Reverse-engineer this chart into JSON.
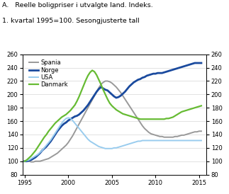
{
  "title_line1": "A.   Reelle boligpriser i utvalgte land. Indeks.",
  "title_line2": "1. kvartal 1995=100. Sesongjusterte tall",
  "ylim": [
    80,
    260
  ],
  "xlim": [
    1994.8,
    2015.8
  ],
  "yticks": [
    80,
    100,
    120,
    140,
    160,
    180,
    200,
    220,
    240,
    260
  ],
  "xticks": [
    1995,
    2000,
    2005,
    2010,
    2015
  ],
  "legend": [
    "Spania",
    "Norge",
    "USA",
    "Danmark"
  ],
  "colors": {
    "Spania": "#999999",
    "Norge": "#1a4a9e",
    "USA": "#99ccee",
    "Danmark": "#66bb33"
  },
  "linewidths": {
    "Spania": 1.4,
    "Norge": 2.0,
    "USA": 1.4,
    "Danmark": 1.6
  },
  "spania": [
    100,
    100,
    100,
    99,
    99,
    100,
    100,
    100,
    101,
    102,
    103,
    104,
    106,
    108,
    110,
    112,
    115,
    118,
    121,
    124,
    128,
    133,
    138,
    144,
    150,
    156,
    162,
    168,
    174,
    180,
    186,
    192,
    198,
    204,
    210,
    215,
    218,
    220,
    220,
    219,
    217,
    214,
    211,
    207,
    203,
    198,
    193,
    188,
    183,
    178,
    173,
    168,
    163,
    158,
    153,
    149,
    146,
    143,
    141,
    140,
    139,
    138,
    137,
    137,
    136,
    136,
    136,
    136,
    136,
    137,
    137,
    138,
    139,
    139,
    140,
    141,
    142,
    143,
    144,
    144,
    145,
    145
  ],
  "norge": [
    100,
    100,
    101,
    102,
    104,
    106,
    109,
    112,
    116,
    119,
    122,
    126,
    130,
    135,
    140,
    145,
    149,
    153,
    156,
    158,
    161,
    163,
    165,
    167,
    168,
    170,
    173,
    176,
    180,
    184,
    189,
    194,
    199,
    204,
    208,
    211,
    209,
    207,
    206,
    203,
    200,
    197,
    195,
    196,
    198,
    201,
    204,
    208,
    212,
    215,
    218,
    220,
    222,
    223,
    225,
    226,
    228,
    229,
    230,
    231,
    231,
    232,
    232,
    232,
    233,
    234,
    235,
    236,
    237,
    238,
    239,
    240,
    241,
    242,
    243,
    244,
    245,
    246,
    247,
    247,
    247,
    247
  ],
  "usa": [
    100,
    101,
    102,
    104,
    106,
    108,
    110,
    113,
    116,
    120,
    124,
    128,
    132,
    137,
    142,
    147,
    152,
    157,
    161,
    164,
    165,
    164,
    161,
    157,
    153,
    149,
    145,
    141,
    137,
    133,
    130,
    128,
    126,
    124,
    122,
    121,
    120,
    119,
    119,
    119,
    119,
    120,
    120,
    121,
    122,
    123,
    124,
    125,
    126,
    127,
    128,
    129,
    130,
    130,
    131,
    131,
    131,
    131,
    131,
    131,
    131,
    131,
    131,
    131,
    131,
    131,
    131,
    131,
    131,
    131,
    131,
    131,
    131,
    131,
    131,
    131,
    131,
    131,
    131,
    131,
    131,
    131
  ],
  "danmark": [
    100,
    102,
    105,
    108,
    112,
    116,
    121,
    126,
    131,
    136,
    140,
    145,
    149,
    153,
    157,
    160,
    163,
    166,
    168,
    170,
    173,
    176,
    180,
    184,
    190,
    197,
    205,
    213,
    221,
    228,
    233,
    236,
    234,
    229,
    222,
    215,
    207,
    200,
    193,
    187,
    183,
    180,
    177,
    175,
    173,
    171,
    170,
    169,
    168,
    167,
    166,
    165,
    164,
    163,
    163,
    163,
    163,
    163,
    163,
    163,
    163,
    163,
    163,
    163,
    163,
    164,
    164,
    165,
    166,
    168,
    170,
    172,
    174,
    175,
    176,
    177,
    178,
    179,
    180,
    181,
    182,
    183
  ]
}
